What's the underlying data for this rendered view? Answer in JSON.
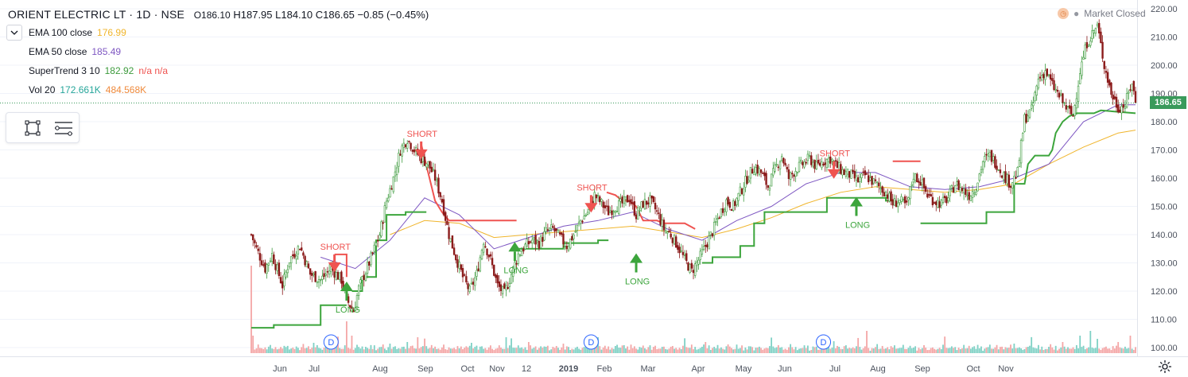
{
  "header": {
    "symbol": "ORIENT ELECTRIC LT · 1D · NSE",
    "open": "O186.10",
    "high": "H187.95",
    "low": "L184.10",
    "close": "C186.65",
    "change": "−0.85 (−0.45%)"
  },
  "indicators": [
    {
      "name": "EMA 100 close",
      "value1": "176.99",
      "value2": "",
      "color1": "#f0b52c",
      "color2": ""
    },
    {
      "name": "EMA 50 close",
      "value1": "185.49",
      "value2": "",
      "color1": "#7e57c2",
      "color2": ""
    },
    {
      "name": "SuperTrend 3 10",
      "value1": "182.92",
      "value2": "n/a n/a",
      "color1": "#3c9a3c",
      "color2": "#ef5350"
    },
    {
      "name": "Vol 20",
      "value1": "172.661K",
      "value2": "484.568K",
      "color1": "#26a69a",
      "color2": "#ef8a3c"
    }
  ],
  "status": {
    "market": "Market Closed"
  },
  "last_price": "186.65",
  "colors": {
    "up": "#3c9a3c",
    "down": "#8b1a1a",
    "supertrend_up": "#3ca53c",
    "supertrend_down": "#ef5350",
    "ema100": "#f0b52c",
    "ema50": "#7e57c2",
    "vol_up": "#7fd1c5",
    "vol_down": "#f4a6a6",
    "axis_text": "#4c525e",
    "grid": "#f0f3fa"
  },
  "chart_data": {
    "type": "candlestick",
    "title": "ORIENT ELECTRIC LT · 1D · NSE",
    "ylim": [
      96,
      222
    ],
    "y_ticks": [
      100,
      110,
      120,
      130,
      140,
      150,
      160,
      170,
      180,
      190,
      200,
      210,
      220
    ],
    "x_ticks": [
      "Jun",
      "Jul",
      "Aug",
      "Sep",
      "Oct",
      "Nov",
      "12",
      "2019",
      "Feb",
      "Mar",
      "Apr",
      "May",
      "Jun",
      "Jul",
      "Aug",
      "Sep",
      "Oct",
      "Nov"
    ],
    "grid": true,
    "price_path": [
      [
        0,
        140
      ],
      [
        3,
        135
      ],
      [
        8,
        128
      ],
      [
        12,
        133
      ],
      [
        18,
        122
      ],
      [
        22,
        131
      ],
      [
        28,
        136
      ],
      [
        34,
        126
      ],
      [
        40,
        124
      ],
      [
        46,
        128
      ],
      [
        52,
        124
      ],
      [
        55,
        117
      ],
      [
        59,
        113
      ],
      [
        62,
        121
      ],
      [
        68,
        130
      ],
      [
        74,
        140
      ],
      [
        78,
        152
      ],
      [
        82,
        160
      ],
      [
        86,
        170
      ],
      [
        90,
        174
      ],
      [
        94,
        170
      ],
      [
        98,
        167
      ],
      [
        102,
        165
      ],
      [
        106,
        160
      ],
      [
        110,
        152
      ],
      [
        114,
        140
      ],
      [
        118,
        132
      ],
      [
        122,
        125
      ],
      [
        126,
        120
      ],
      [
        130,
        126
      ],
      [
        134,
        138
      ],
      [
        138,
        131
      ],
      [
        142,
        122
      ],
      [
        146,
        119
      ],
      [
        150,
        126
      ],
      [
        154,
        133
      ],
      [
        158,
        136
      ],
      [
        162,
        138
      ],
      [
        166,
        137
      ],
      [
        170,
        141
      ],
      [
        174,
        142
      ],
      [
        178,
        139
      ],
      [
        182,
        136
      ],
      [
        186,
        140
      ],
      [
        190,
        145
      ],
      [
        194,
        148
      ],
      [
        198,
        154
      ],
      [
        202,
        151
      ],
      [
        206,
        148
      ],
      [
        210,
        150
      ],
      [
        214,
        151
      ],
      [
        218,
        153
      ],
      [
        222,
        147
      ],
      [
        226,
        151
      ],
      [
        230,
        152
      ],
      [
        234,
        148
      ],
      [
        238,
        142
      ],
      [
        242,
        140
      ],
      [
        246,
        136
      ],
      [
        250,
        131
      ],
      [
        254,
        127
      ],
      [
        258,
        131
      ],
      [
        262,
        136
      ],
      [
        266,
        141
      ],
      [
        270,
        147
      ],
      [
        274,
        152
      ],
      [
        278,
        150
      ],
      [
        282,
        155
      ],
      [
        286,
        160
      ],
      [
        290,
        164
      ],
      [
        294,
        162
      ],
      [
        298,
        157
      ],
      [
        302,
        163
      ],
      [
        306,
        168
      ],
      [
        310,
        160
      ],
      [
        314,
        163
      ],
      [
        318,
        165
      ],
      [
        322,
        167
      ],
      [
        326,
        164
      ],
      [
        330,
        166
      ],
      [
        334,
        167
      ],
      [
        338,
        164
      ],
      [
        342,
        162
      ],
      [
        346,
        161
      ],
      [
        350,
        159
      ],
      [
        354,
        161
      ],
      [
        358,
        159
      ],
      [
        362,
        157
      ],
      [
        366,
        155
      ],
      [
        370,
        151
      ],
      [
        374,
        152
      ],
      [
        378,
        150
      ],
      [
        382,
        161
      ],
      [
        386,
        159
      ],
      [
        390,
        154
      ],
      [
        394,
        152
      ],
      [
        398,
        151
      ],
      [
        402,
        153
      ],
      [
        406,
        158
      ],
      [
        410,
        156
      ],
      [
        414,
        154
      ],
      [
        418,
        157
      ],
      [
        422,
        166
      ],
      [
        426,
        168
      ],
      [
        430,
        165
      ],
      [
        434,
        161
      ],
      [
        438,
        158
      ],
      [
        442,
        162
      ],
      [
        446,
        181
      ],
      [
        450,
        184
      ],
      [
        454,
        195
      ],
      [
        458,
        198
      ],
      [
        462,
        193
      ],
      [
        466,
        189
      ],
      [
        470,
        185
      ],
      [
        474,
        182
      ],
      [
        478,
        198
      ],
      [
        482,
        208
      ],
      [
        486,
        212
      ],
      [
        488,
        214
      ],
      [
        492,
        200
      ],
      [
        496,
        190
      ],
      [
        500,
        185
      ],
      [
        504,
        186
      ],
      [
        508,
        194
      ],
      [
        510,
        186.65
      ]
    ],
    "supertrend": [
      {
        "trend": "up",
        "points": [
          [
            0,
            107
          ],
          [
            13,
            107
          ],
          [
            13,
            108
          ],
          [
            40,
            108
          ],
          [
            40,
            115
          ],
          [
            55,
            115
          ]
        ]
      },
      {
        "trend": "down",
        "points": [
          [
            48,
            133
          ],
          [
            55,
            133
          ],
          [
            55,
            125
          ]
        ]
      },
      {
        "trend": "up",
        "points": [
          [
            58,
            120
          ],
          [
            64,
            120
          ],
          [
            64,
            125
          ],
          [
            72,
            125
          ],
          [
            72,
            138
          ],
          [
            78,
            138
          ],
          [
            78,
            147
          ],
          [
            89,
            147
          ],
          [
            89,
            148
          ],
          [
            101,
            148
          ]
        ]
      },
      {
        "trend": "down",
        "points": [
          [
            98,
            172
          ],
          [
            102,
            162
          ],
          [
            106,
            152
          ],
          [
            110,
            148
          ],
          [
            114,
            145
          ],
          [
            136,
            145
          ],
          [
            152,
            145
          ],
          [
            153,
            145
          ]
        ]
      },
      {
        "trend": "up",
        "points": [
          [
            153,
            135
          ],
          [
            160,
            135
          ],
          [
            160,
            135
          ],
          [
            180,
            135
          ],
          [
            180,
            137
          ],
          [
            200,
            137
          ],
          [
            200,
            138
          ],
          [
            206,
            138
          ]
        ]
      },
      {
        "trend": "down",
        "points": [
          [
            205,
            155
          ],
          [
            210,
            154
          ],
          [
            214,
            152
          ],
          [
            218,
            152
          ],
          [
            222,
            150
          ],
          [
            226,
            145
          ],
          [
            234,
            145
          ],
          [
            238,
            144
          ],
          [
            250,
            144
          ],
          [
            256,
            142
          ]
        ]
      },
      {
        "trend": "up",
        "points": [
          [
            260,
            130
          ],
          [
            266,
            130
          ],
          [
            266,
            132
          ],
          [
            282,
            132
          ],
          [
            282,
            136
          ],
          [
            290,
            136
          ],
          [
            290,
            144
          ],
          [
            296,
            144
          ],
          [
            296,
            148
          ],
          [
            318,
            148
          ],
          [
            318,
            148
          ],
          [
            332,
            148
          ],
          [
            332,
            153
          ],
          [
            366,
            153
          ],
          [
            366,
            152
          ],
          [
            372,
            152
          ]
        ]
      },
      {
        "trend": "down",
        "points": [
          [
            370,
            166
          ],
          [
            378,
            166
          ],
          [
            378,
            166
          ],
          [
            384,
            166
          ],
          [
            386,
            166
          ]
        ]
      },
      {
        "trend": "up",
        "points": [
          [
            386,
            144
          ],
          [
            400,
            144
          ],
          [
            400,
            144
          ],
          [
            424,
            144
          ],
          [
            424,
            148
          ],
          [
            440,
            148
          ],
          [
            440,
            158
          ],
          [
            446,
            158
          ],
          [
            448,
            165
          ],
          [
            452,
            168
          ],
          [
            460,
            168
          ],
          [
            462,
            170
          ],
          [
            464,
            176
          ],
          [
            468,
            180
          ],
          [
            472,
            182
          ],
          [
            476,
            183
          ],
          [
            486,
            183
          ],
          [
            490,
            184
          ],
          [
            510,
            183
          ]
        ]
      }
    ],
    "ema50": [
      [
        40,
        132
      ],
      [
        60,
        128
      ],
      [
        80,
        138
      ],
      [
        100,
        153
      ],
      [
        120,
        147
      ],
      [
        140,
        135
      ],
      [
        160,
        139
      ],
      [
        180,
        143
      ],
      [
        200,
        145
      ],
      [
        220,
        148
      ],
      [
        240,
        142
      ],
      [
        260,
        138
      ],
      [
        280,
        145
      ],
      [
        300,
        150
      ],
      [
        320,
        158
      ],
      [
        340,
        162
      ],
      [
        360,
        162
      ],
      [
        380,
        157
      ],
      [
        400,
        156
      ],
      [
        420,
        157
      ],
      [
        440,
        160
      ],
      [
        460,
        165
      ],
      [
        480,
        180
      ],
      [
        500,
        186
      ],
      [
        510,
        186
      ]
    ],
    "ema100": [
      [
        80,
        140
      ],
      [
        100,
        145
      ],
      [
        120,
        144
      ],
      [
        140,
        139
      ],
      [
        160,
        140
      ],
      [
        180,
        141
      ],
      [
        200,
        142
      ],
      [
        220,
        143
      ],
      [
        240,
        141
      ],
      [
        260,
        139
      ],
      [
        280,
        142
      ],
      [
        300,
        146
      ],
      [
        320,
        151
      ],
      [
        340,
        155
      ],
      [
        360,
        157
      ],
      [
        380,
        156
      ],
      [
        400,
        155
      ],
      [
        420,
        156
      ],
      [
        440,
        158
      ],
      [
        460,
        165
      ],
      [
        480,
        171
      ],
      [
        500,
        176
      ],
      [
        510,
        177
      ]
    ],
    "signals": [
      {
        "type": "SHORT",
        "bar": 48,
        "price": 133
      },
      {
        "type": "LONG",
        "bar": 55,
        "price": 120
      },
      {
        "type": "SHORT",
        "bar": 98,
        "price": 173
      },
      {
        "type": "LONG",
        "bar": 152,
        "price": 134
      },
      {
        "type": "SHORT",
        "bar": 196,
        "price": 154
      },
      {
        "type": "LONG",
        "bar": 222,
        "price": 130
      },
      {
        "type": "SHORT",
        "bar": 336,
        "price": 166
      },
      {
        "type": "LONG",
        "bar": 349,
        "price": 150
      }
    ],
    "dividends": [
      {
        "bar": 46
      },
      {
        "bar": 196
      },
      {
        "bar": 330
      }
    ],
    "volume": {
      "base": [
        18,
        6,
        4,
        5,
        8,
        4,
        6,
        3,
        5,
        4,
        6,
        9,
        5,
        4,
        7,
        3,
        5,
        6,
        4,
        8,
        5,
        7,
        3,
        4,
        6,
        5,
        8,
        4,
        3,
        5,
        9,
        4,
        6,
        7,
        3,
        5,
        4,
        6,
        8,
        5,
        3,
        4,
        6,
        7,
        5,
        4,
        3,
        6,
        5,
        8
      ],
      "spikes": [
        [
          0,
          110
        ],
        [
          1,
          22
        ],
        [
          36,
          13
        ],
        [
          55,
          40
        ],
        [
          58,
          22
        ],
        [
          80,
          12
        ],
        [
          90,
          14
        ],
        [
          96,
          20
        ],
        [
          127,
          13
        ],
        [
          147,
          20
        ],
        [
          160,
          14
        ],
        [
          170,
          8
        ],
        [
          210,
          9
        ],
        [
          215,
          10
        ],
        [
          262,
          14
        ],
        [
          275,
          11
        ],
        [
          336,
          15
        ],
        [
          355,
          28
        ],
        [
          440,
          12
        ],
        [
          468,
          14
        ],
        [
          478,
          22
        ],
        [
          484,
          28
        ],
        [
          488,
          18
        ],
        [
          500,
          14
        ],
        [
          507,
          22
        ]
      ]
    }
  }
}
